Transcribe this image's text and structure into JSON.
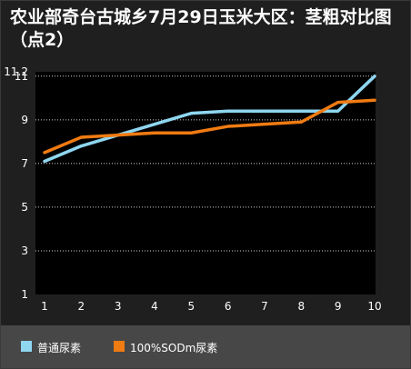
{
  "chart_data": {
    "type": "line",
    "title": "农业部奇台古城乡7月29日玉米大区：茎粗对比图（点2）",
    "x": [
      1,
      2,
      3,
      4,
      5,
      6,
      7,
      8,
      9,
      10
    ],
    "x_tick_labels": [
      "1",
      "2",
      "3",
      "4",
      "5",
      "6",
      "7",
      "8",
      "9",
      "10"
    ],
    "y_tick_labels": [
      "1",
      "3",
      "5",
      "7",
      "9",
      "11",
      "11.2"
    ],
    "ylim": [
      1,
      11.2
    ],
    "grid": true,
    "legend_position": "bottom",
    "series": [
      {
        "name": "普通尿素",
        "color": "#8fd6f0",
        "values": [
          7.1,
          7.8,
          8.3,
          8.8,
          9.3,
          9.4,
          9.4,
          9.4,
          9.4,
          11.0
        ]
      },
      {
        "name": "100%SODm尿素",
        "color": "#f07b12",
        "values": [
          7.5,
          8.2,
          8.3,
          8.4,
          8.4,
          8.7,
          8.8,
          8.9,
          9.8,
          9.9
        ]
      }
    ]
  }
}
